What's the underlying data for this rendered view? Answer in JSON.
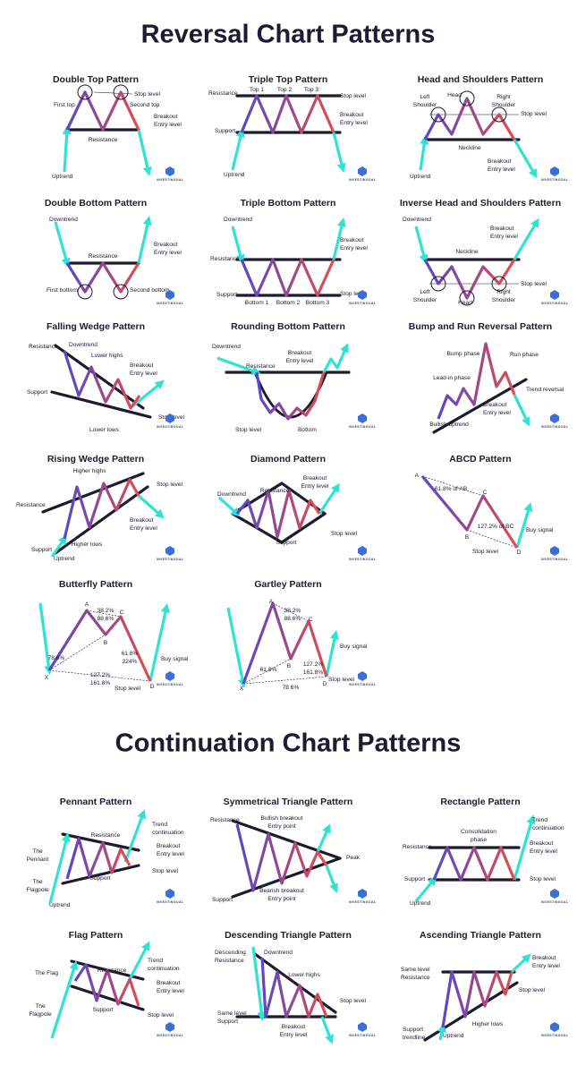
{
  "sections": [
    {
      "title": "Reversal Chart Patterns",
      "patterns": [
        {
          "title": "Double Top Pattern",
          "labels": [
            "Stop level",
            "First top",
            "Second top",
            "Breakout",
            "Entry level",
            "Resistance",
            "Uptrend"
          ]
        },
        {
          "title": "Triple Top Pattern",
          "labels": [
            "Resistance",
            "Top 1",
            "Top 2",
            "Top 3",
            "Stop level",
            "Breakout",
            "Entry level",
            "Support",
            "Uptrend"
          ]
        },
        {
          "title": "Head and Shoulders Pattern",
          "labels": [
            "Head",
            "Left",
            "Shoulder",
            "Right",
            "Shoulder",
            "Stop level",
            "Neckline",
            "Breakout",
            "Entry level",
            "Uptrend"
          ]
        },
        {
          "title": "Double Bottom Pattern",
          "labels": [
            "Downtrend",
            "Breakout",
            "Entry level",
            "Resistance",
            "First bottom",
            "Second bottom"
          ]
        },
        {
          "title": "Triple Bottom Pattern",
          "labels": [
            "Downtrend",
            "Breakout",
            "Entry level",
            "Resistance",
            "Support",
            "Bottom 1",
            "Bottom 2",
            "Bottom 3",
            "Stop level"
          ]
        },
        {
          "title": "Inverse Head and Shoulders Pattern",
          "labels": [
            "Downtrend",
            "Breakout",
            "Entry level",
            "Neckline",
            "Stop level",
            "Left",
            "Shoulder",
            "Head",
            "Right",
            "Shoulder"
          ]
        },
        {
          "title": "Falling Wedge Pattern",
          "labels": [
            "Resistance",
            "Downtrend",
            "Lower highs",
            "Breakout",
            "Entry level",
            "Support",
            "Stop level",
            "Lower lows"
          ]
        },
        {
          "title": "Rounding Bottom Pattern",
          "labels": [
            "Downtrend",
            "Breakout",
            "Entry level",
            "Resistance",
            "Stop level",
            "Bottom"
          ]
        },
        {
          "title": "Bump and Run Reversal Pattern",
          "labels": [
            "Bump phase",
            "Run phase",
            "Lead-in phase",
            "Trend reversal",
            "Breakout",
            "Entry level",
            "Bullish uptrend"
          ]
        },
        {
          "title": "Rising Wedge Pattern",
          "labels": [
            "Higher highs",
            "Stop level",
            "Resistance",
            "Breakout",
            "Entry level",
            "Higher lows",
            "Support",
            "Uptrend"
          ]
        },
        {
          "title": "Diamond Pattern",
          "labels": [
            "Downtrend",
            "Resistance",
            "Breakout",
            "Entry level",
            "Stop level",
            "Support"
          ]
        },
        {
          "title": "ABCD Pattern",
          "labels": [
            "A",
            "61.8% of AB",
            "C",
            "B",
            "127.2% of BC",
            "Buy signal",
            "Stop level",
            "D"
          ]
        },
        {
          "title": "Butterfly Pattern",
          "labels": [
            "A",
            "38.2%",
            "88.6%",
            "C",
            "B",
            "78.6%",
            "61.8%",
            "224%",
            "127.2%",
            "161.8%",
            "Buy signal",
            "Stop level",
            "X",
            "D"
          ]
        },
        {
          "title": "Gartley Pattern",
          "labels": [
            "A",
            "38.2%",
            "88.6%",
            "C",
            "Buy signal",
            "61.8%",
            "B",
            "127.2%",
            "161.8%",
            "Stop level",
            "X",
            "D",
            "78.6%"
          ]
        }
      ]
    },
    {
      "title": "Continuation Chart Patterns",
      "patterns": [
        {
          "title": "Pennant Pattern",
          "labels": [
            "Resistance",
            "Trend",
            "continuation",
            "The",
            "Pennant",
            "Breakout",
            "Entry level",
            "Stop level",
            "Support",
            "The",
            "Flagpole",
            "Uptrend"
          ]
        },
        {
          "title": "Symmetrical Triangle Pattern",
          "labels": [
            "Resistance",
            "Bullish breakout",
            "Entry point",
            "Peak",
            "Support",
            "Bearish breakout",
            "Entry point"
          ]
        },
        {
          "title": "Rectangle Pattern",
          "labels": [
            "Trend",
            "continuation",
            "Consolidation",
            "phase",
            "Resistance",
            "Breakout",
            "Entry level",
            "Support",
            "Stop level",
            "Uptrend"
          ]
        },
        {
          "title": "Flag Pattern",
          "labels": [
            "The Flag",
            "Resistance",
            "Trend",
            "continuation",
            "Breakout",
            "Entry level",
            "The",
            "Flagpole",
            "Support",
            "Stop level"
          ]
        },
        {
          "title": "Descending Triangle Pattern",
          "labels": [
            "Descending",
            "Resistance",
            "Downtrend",
            "Lower highs",
            "Stop level",
            "Same level",
            "Support",
            "Breakout",
            "Entry level"
          ]
        },
        {
          "title": "Ascending Triangle Pattern",
          "labels": [
            "Breakout",
            "Entry level",
            "Same level",
            "Resistance",
            "Stop level",
            "Higher lows",
            "Support",
            "trendline",
            "Uptrend"
          ]
        }
      ]
    }
  ],
  "brand": "INVESTINGOAL"
}
